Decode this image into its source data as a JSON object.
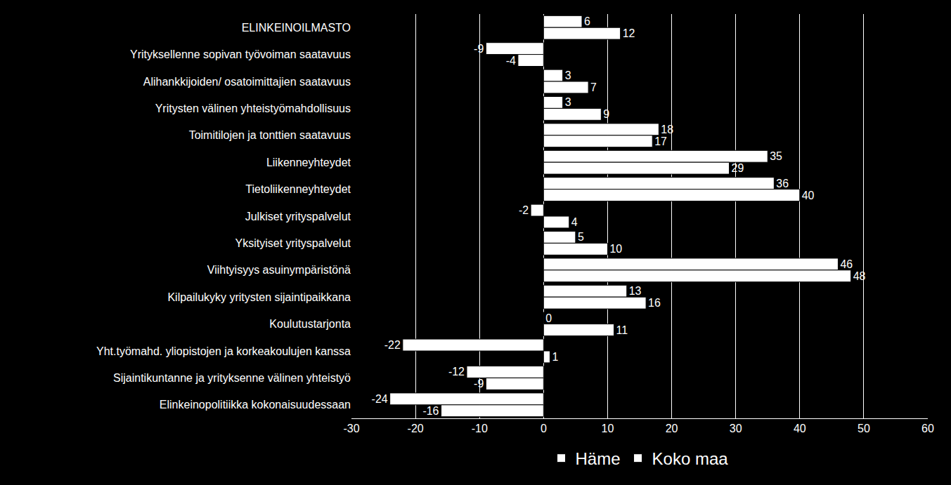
{
  "chart_data": {
    "type": "bar",
    "orientation": "horizontal",
    "categories": [
      "ELINKEINOILMASTO",
      "Yrityksellenne sopivan työvoiman saatavuus",
      "Alihankkijoiden/ osatoimittajien saatavuus",
      "Yritysten välinen yhteistyömahdollisuus",
      "Toimitilojen ja tonttien saatavuus",
      "Liikenneyhteydet",
      "Tietoliikenneyhteydet",
      "Julkiset yrityspalvelut",
      "Yksityiset yrityspalvelut",
      "Viihtyisyys asuinympäristönä",
      "Kilpailukyky yritysten sijaintipaikkana",
      "Koulutustarjonta",
      "Yht.työmahd. yliopistojen ja korkeakoulujen kanssa",
      "Sijaintikuntanne ja yrityksenne välinen yhteistyö",
      "Elinkeinopolitiikka kokonaisuudessaan"
    ],
    "series": [
      {
        "name": "Häme",
        "color": "#ffffff",
        "values": [
          6,
          -9,
          3,
          3,
          18,
          35,
          36,
          -2,
          5,
          46,
          13,
          0,
          -22,
          -12,
          -24
        ]
      },
      {
        "name": "Koko maa",
        "color": "#ffffff",
        "values": [
          12,
          -4,
          7,
          9,
          17,
          29,
          40,
          4,
          10,
          48,
          16,
          11,
          1,
          -9,
          -16
        ]
      }
    ],
    "xlim": [
      -30,
      60
    ],
    "xticks": [
      -30,
      -20,
      -10,
      0,
      10,
      20,
      30,
      40,
      50,
      60
    ],
    "grid": true,
    "legend": "bottom",
    "data_labels": true
  }
}
